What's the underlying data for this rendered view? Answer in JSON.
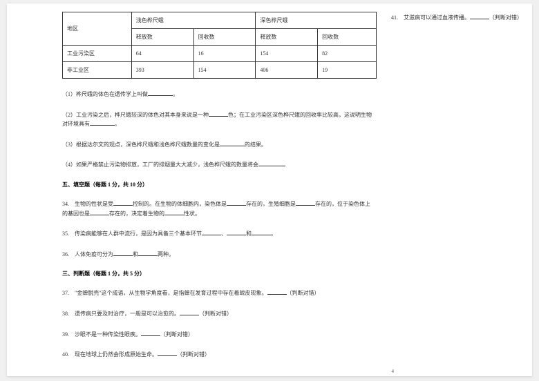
{
  "table": {
    "headers": {
      "region": "地区",
      "light": "浅色桦尺蛾",
      "dark": "深色桦尺蛾",
      "release": "释放数",
      "recapture": "回收数"
    },
    "rows": [
      {
        "region": "工业污染区",
        "lr": "64",
        "lc": "16",
        "dr": "154",
        "dc": "82"
      },
      {
        "region": "非工业区",
        "lr": "393",
        "lc": "154",
        "dr": "406",
        "dc": "19"
      }
    ]
  },
  "q": {
    "q1": "（1）桦尺蛾的体色在遗传学上叫做",
    "q1end": "。",
    "q2a": "（2）工业污染之后，桦尺蛾较深的体色对其本身来说是一种",
    "q2b": "色；在工业污染区深色桦尺蛾的回收率比较高，这说明生物对环境具有",
    "q2end": "。",
    "q3a": "（3）根据达尔文的观点，深色桦尺蛾和浅色桦尺蛾数量的变化是",
    "q3b": "的结果。",
    "q4a": "（4）如果严格禁止污染物排放，工厂的排烟量大大减少，浅色桦尺蛾的数量将会",
    "q4end": "。"
  },
  "section5": "五、填空题（每题 1 分，共 10 分）",
  "q34": {
    "a": "34.　生物的性状是受",
    "b": "控制的。在生物的体细胞内，染色体是",
    "c": "存在的，生殖细胞是",
    "d": "存在的，位于染色体上的基因也是",
    "e": "存在的，决定着生物的",
    "f": "性状。"
  },
  "q35": {
    "a": "35.　传染病能够在人群中流行，是因为具备三个基本环节",
    "b": "、",
    "c": "和",
    "d": "。"
  },
  "q36": {
    "a": "36.　人体免疫可分为",
    "b": "和",
    "c": "两种。"
  },
  "section3": "三、判断题（每题 1 分，共 5 分）",
  "q37": {
    "a": "37.　\"金蝉脱壳\"这个成语，从生物学角度看，是指蝉在发育过程中存在着蜕皮现象。",
    "b": "（判断对错）"
  },
  "q38": {
    "a": "38.　遗传病只要及时治疗，一般是可以治愈的。",
    "b": "（判断对错）"
  },
  "q39": {
    "a": "39.　沙眼不是一种传染性眼疾。",
    "b": "（判断对错）"
  },
  "q40": {
    "a": "40.　现在地球上仍然会形成原始生命。",
    "b": "（判断对错）"
  },
  "q41": {
    "a": "41.　艾滋病可以通过血液传播。",
    "b": "（判断对错）"
  },
  "pageno": "4"
}
